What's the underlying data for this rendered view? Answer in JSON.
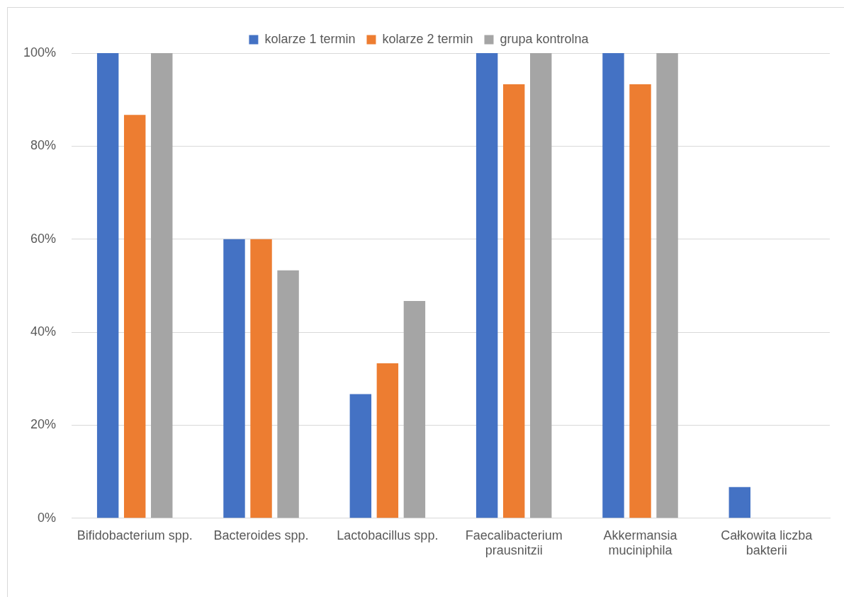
{
  "chart_data": {
    "type": "bar",
    "categories": [
      "Bifidobacterium spp.",
      "Bacteroides spp.",
      "Lactobacillus spp.",
      "Faecalibacterium prausnitzii",
      "Akkermansia muciniphila",
      "Całkowita liczba bakterii"
    ],
    "series": [
      {
        "name": "kolarze 1 termin",
        "color": "#4472c4",
        "values": [
          100,
          60,
          26.7,
          100,
          100,
          6.7
        ]
      },
      {
        "name": "kolarze 2 termin",
        "color": "#ed7d31",
        "values": [
          86.7,
          60,
          33.3,
          93.3,
          93.3,
          0
        ]
      },
      {
        "name": "grupa kontrolna",
        "color": "#a5a5a5",
        "values": [
          100,
          53.3,
          46.7,
          100,
          100,
          0
        ]
      }
    ],
    "ylim": [
      0,
      100
    ],
    "yticks": [
      {
        "value": 0,
        "label": "0%"
      },
      {
        "value": 20,
        "label": "20%"
      },
      {
        "value": 40,
        "label": "40%"
      },
      {
        "value": 60,
        "label": "60%"
      },
      {
        "value": 80,
        "label": "80%"
      },
      {
        "value": 100,
        "label": "100%"
      }
    ],
    "grid": "y",
    "legend": "top"
  }
}
